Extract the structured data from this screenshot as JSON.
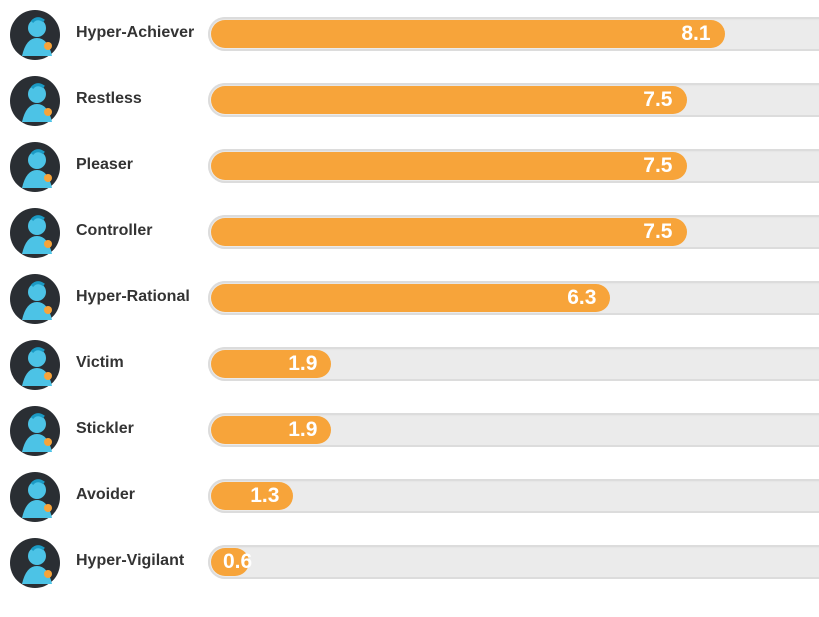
{
  "chart_data": {
    "type": "bar",
    "orientation": "horizontal",
    "categories": [
      "Hyper-Achiever",
      "Restless",
      "Pleaser",
      "Controller",
      "Hyper-Rational",
      "Victim",
      "Stickler",
      "Avoider",
      "Hyper-Vigilant"
    ],
    "values": [
      8.1,
      7.5,
      7.5,
      7.5,
      6.3,
      1.9,
      1.9,
      1.3,
      0.6
    ],
    "value_labels": [
      "8.1",
      "7.5",
      "7.5",
      "7.5",
      "6.3",
      "1.9",
      "1.9",
      "1.3",
      "0.6"
    ],
    "xlim": [
      0,
      10
    ],
    "bar_color": "#f7a43a",
    "track_color": "#ebebeb",
    "avatar_icons": [
      "hyper-achiever-avatar-icon",
      "restless-avatar-icon",
      "pleaser-avatar-icon",
      "controller-avatar-icon",
      "hyper-rational-avatar-icon",
      "victim-avatar-icon",
      "stickler-avatar-icon",
      "avoider-avatar-icon",
      "hyper-vigilant-avatar-icon"
    ]
  }
}
